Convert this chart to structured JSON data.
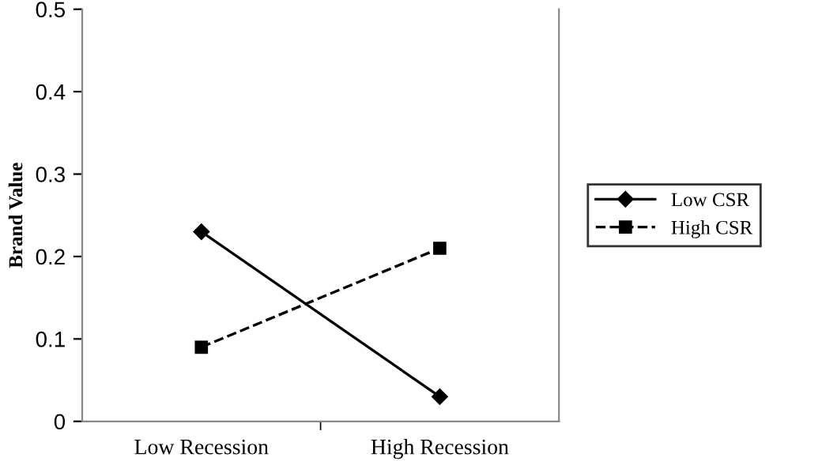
{
  "chart_data": {
    "type": "line",
    "ylabel": "Brand Value",
    "categories": [
      "Low Recession",
      "High Recession"
    ],
    "series": [
      {
        "name": "Low CSR",
        "color": "#000000",
        "values": [
          0.23,
          0.03
        ],
        "marker": "diamond",
        "line_style": "solid"
      },
      {
        "name": "High CSR",
        "color": "#000000",
        "values": [
          0.09,
          0.21
        ],
        "marker": "square",
        "line_style": "dashed"
      }
    ],
    "ylim": [
      0,
      0.5
    ],
    "yticks": [
      {
        "value": 0,
        "label": "0"
      },
      0.1,
      0.2,
      0.3,
      0.4,
      0.5
    ],
    "grid": false,
    "legend": "right"
  }
}
